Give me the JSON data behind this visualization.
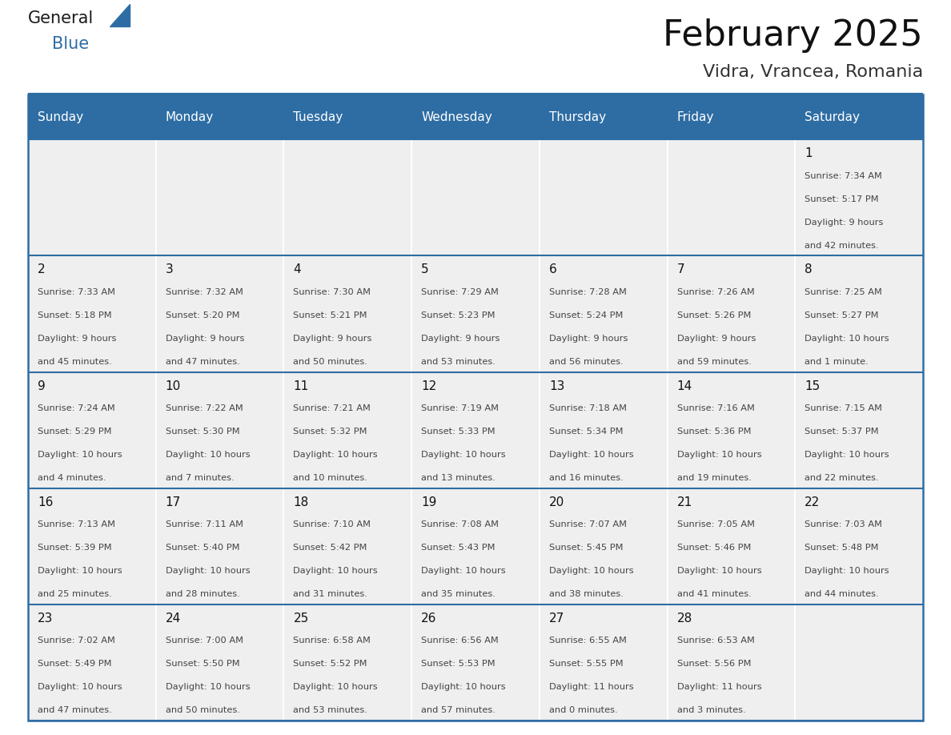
{
  "title": "February 2025",
  "subtitle": "Vidra, Vrancea, Romania",
  "header_color": "#2E6DA4",
  "header_text_color": "#FFFFFF",
  "cell_bg_color": "#EFEFEF",
  "border_color": "#2E6DA4",
  "text_color": "#444444",
  "days_of_week": [
    "Sunday",
    "Monday",
    "Tuesday",
    "Wednesday",
    "Thursday",
    "Friday",
    "Saturday"
  ],
  "calendar_data": [
    [
      null,
      null,
      null,
      null,
      null,
      null,
      {
        "day": "1",
        "sunrise": "7:34 AM",
        "sunset": "5:17 PM",
        "daylight": "9 hours\nand 42 minutes."
      }
    ],
    [
      {
        "day": "2",
        "sunrise": "7:33 AM",
        "sunset": "5:18 PM",
        "daylight": "9 hours\nand 45 minutes."
      },
      {
        "day": "3",
        "sunrise": "7:32 AM",
        "sunset": "5:20 PM",
        "daylight": "9 hours\nand 47 minutes."
      },
      {
        "day": "4",
        "sunrise": "7:30 AM",
        "sunset": "5:21 PM",
        "daylight": "9 hours\nand 50 minutes."
      },
      {
        "day": "5",
        "sunrise": "7:29 AM",
        "sunset": "5:23 PM",
        "daylight": "9 hours\nand 53 minutes."
      },
      {
        "day": "6",
        "sunrise": "7:28 AM",
        "sunset": "5:24 PM",
        "daylight": "9 hours\nand 56 minutes."
      },
      {
        "day": "7",
        "sunrise": "7:26 AM",
        "sunset": "5:26 PM",
        "daylight": "9 hours\nand 59 minutes."
      },
      {
        "day": "8",
        "sunrise": "7:25 AM",
        "sunset": "5:27 PM",
        "daylight": "10 hours\nand 1 minute."
      }
    ],
    [
      {
        "day": "9",
        "sunrise": "7:24 AM",
        "sunset": "5:29 PM",
        "daylight": "10 hours\nand 4 minutes."
      },
      {
        "day": "10",
        "sunrise": "7:22 AM",
        "sunset": "5:30 PM",
        "daylight": "10 hours\nand 7 minutes."
      },
      {
        "day": "11",
        "sunrise": "7:21 AM",
        "sunset": "5:32 PM",
        "daylight": "10 hours\nand 10 minutes."
      },
      {
        "day": "12",
        "sunrise": "7:19 AM",
        "sunset": "5:33 PM",
        "daylight": "10 hours\nand 13 minutes."
      },
      {
        "day": "13",
        "sunrise": "7:18 AM",
        "sunset": "5:34 PM",
        "daylight": "10 hours\nand 16 minutes."
      },
      {
        "day": "14",
        "sunrise": "7:16 AM",
        "sunset": "5:36 PM",
        "daylight": "10 hours\nand 19 minutes."
      },
      {
        "day": "15",
        "sunrise": "7:15 AM",
        "sunset": "5:37 PM",
        "daylight": "10 hours\nand 22 minutes."
      }
    ],
    [
      {
        "day": "16",
        "sunrise": "7:13 AM",
        "sunset": "5:39 PM",
        "daylight": "10 hours\nand 25 minutes."
      },
      {
        "day": "17",
        "sunrise": "7:11 AM",
        "sunset": "5:40 PM",
        "daylight": "10 hours\nand 28 minutes."
      },
      {
        "day": "18",
        "sunrise": "7:10 AM",
        "sunset": "5:42 PM",
        "daylight": "10 hours\nand 31 minutes."
      },
      {
        "day": "19",
        "sunrise": "7:08 AM",
        "sunset": "5:43 PM",
        "daylight": "10 hours\nand 35 minutes."
      },
      {
        "day": "20",
        "sunrise": "7:07 AM",
        "sunset": "5:45 PM",
        "daylight": "10 hours\nand 38 minutes."
      },
      {
        "day": "21",
        "sunrise": "7:05 AM",
        "sunset": "5:46 PM",
        "daylight": "10 hours\nand 41 minutes."
      },
      {
        "day": "22",
        "sunrise": "7:03 AM",
        "sunset": "5:48 PM",
        "daylight": "10 hours\nand 44 minutes."
      }
    ],
    [
      {
        "day": "23",
        "sunrise": "7:02 AM",
        "sunset": "5:49 PM",
        "daylight": "10 hours\nand 47 minutes."
      },
      {
        "day": "24",
        "sunrise": "7:00 AM",
        "sunset": "5:50 PM",
        "daylight": "10 hours\nand 50 minutes."
      },
      {
        "day": "25",
        "sunrise": "6:58 AM",
        "sunset": "5:52 PM",
        "daylight": "10 hours\nand 53 minutes."
      },
      {
        "day": "26",
        "sunrise": "6:56 AM",
        "sunset": "5:53 PM",
        "daylight": "10 hours\nand 57 minutes."
      },
      {
        "day": "27",
        "sunrise": "6:55 AM",
        "sunset": "5:55 PM",
        "daylight": "11 hours\nand 0 minutes."
      },
      {
        "day": "28",
        "sunrise": "6:53 AM",
        "sunset": "5:56 PM",
        "daylight": "11 hours\nand 3 minutes."
      },
      null
    ]
  ],
  "logo_color_general": "#1a1a1a",
  "logo_color_blue": "#2E6DA4",
  "logo_triangle_color": "#2E6DA4",
  "fig_width": 11.88,
  "fig_height": 9.18,
  "dpi": 100
}
